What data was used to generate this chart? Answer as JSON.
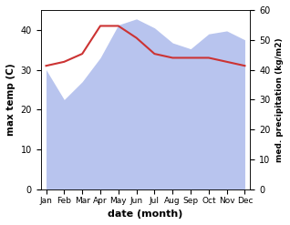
{
  "months": [
    "Jan",
    "Feb",
    "Mar",
    "Apr",
    "May",
    "Jun",
    "Jul",
    "Aug",
    "Sep",
    "Oct",
    "Nov",
    "Dec"
  ],
  "temperature": [
    31,
    32,
    34,
    41,
    41,
    38,
    34,
    33,
    33,
    33,
    32,
    31
  ],
  "precipitation": [
    40,
    30,
    36,
    44,
    55,
    57,
    54,
    49,
    47,
    52,
    53,
    50
  ],
  "temp_color": "#cc3333",
  "precip_fill_color": "#b8c4ee",
  "precip_edge_color": "#b8c4ee",
  "ylabel_left": "max temp (C)",
  "ylabel_right": "med. precipitation (kg/m2)",
  "xlabel": "date (month)",
  "ylim_left": [
    0,
    45
  ],
  "ylim_right": [
    0,
    60
  ],
  "yticks_left": [
    0,
    10,
    20,
    30,
    40
  ],
  "yticks_right": [
    0,
    10,
    20,
    30,
    40,
    50,
    60
  ]
}
